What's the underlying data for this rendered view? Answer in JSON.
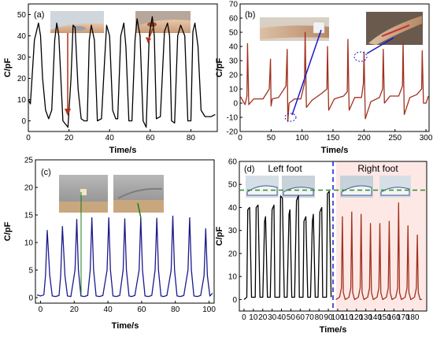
{
  "chart_data": [
    {
      "panel": "(a)",
      "type": "line",
      "xlabel": "Time/s",
      "ylabel": "C/pF",
      "xlim": [
        0,
        93
      ],
      "ylim": [
        -5,
        55
      ],
      "xticks": [
        0,
        20,
        40,
        60,
        80
      ],
      "yticks": [
        0,
        10,
        20,
        30,
        40,
        50
      ],
      "line_color": "#000000",
      "annotation_color": "#b0301a",
      "series": [
        {
          "x": [
            0,
            1,
            3,
            5,
            6,
            7,
            8.5,
            10,
            11.5,
            13,
            14,
            15,
            17,
            19.5,
            21,
            22,
            23,
            24.5,
            26,
            27.5,
            29,
            30,
            31,
            32.5,
            34,
            36,
            37.5,
            38.5,
            40,
            41.5,
            43,
            44,
            45.5,
            47,
            48,
            49.5,
            51,
            52.5,
            53.5,
            55,
            56.5,
            58,
            59.5,
            61,
            62,
            63,
            65,
            67,
            68.5,
            69.5,
            70.5,
            72,
            73.5,
            75,
            77,
            78.5,
            80,
            81,
            82,
            83.5,
            85,
            87,
            88.5,
            90,
            92
          ],
          "y": [
            10,
            8,
            38,
            46,
            40,
            20,
            5,
            1,
            5,
            38,
            46,
            40,
            0,
            -3,
            20,
            45,
            44,
            15,
            1,
            0,
            0,
            38,
            45,
            38,
            0,
            1,
            28,
            45,
            40,
            5,
            1,
            1,
            40,
            46,
            35,
            0,
            0,
            38,
            48,
            40,
            0,
            -3,
            40,
            49,
            40,
            1,
            2,
            42,
            46,
            40,
            0,
            -1,
            40,
            45,
            40,
            0,
            0,
            42,
            46,
            35,
            5,
            2,
            2,
            2,
            3
          ]
        }
      ]
    },
    {
      "panel": "(b)",
      "type": "line",
      "xlabel": "Time/s",
      "ylabel": "C/pF",
      "xlim": [
        0,
        305
      ],
      "ylim": [
        -20,
        70
      ],
      "xticks": [
        0,
        50,
        100,
        150,
        200,
        250,
        300
      ],
      "yticks": [
        -20,
        -10,
        0,
        10,
        20,
        30,
        40,
        50,
        60,
        70
      ],
      "line_color": "#a0301e",
      "annotation_color": "#1a1acc",
      "series": [
        {
          "x": [
            0,
            8,
            11,
            12,
            14,
            22,
            37,
            47,
            49,
            50,
            52,
            62,
            74,
            76,
            77,
            79,
            88,
            98,
            104,
            105,
            107,
            116,
            132,
            140,
            141,
            143,
            152,
            167,
            173,
            174,
            176,
            185,
            196,
            199,
            200,
            202,
            211,
            225,
            230,
            231,
            233,
            242,
            256,
            262,
            263,
            265,
            274,
            285,
            293,
            294,
            296,
            300,
            304
          ],
          "y": [
            5,
            -1,
            5,
            42,
            -1,
            3,
            3,
            10,
            31,
            -2,
            3,
            4,
            12,
            38,
            -13,
            0,
            3,
            3,
            14,
            50,
            -3,
            2,
            7,
            10,
            40,
            -5,
            3,
            5,
            8,
            45,
            -5,
            4,
            4,
            14,
            36,
            -11,
            1,
            4,
            10,
            38,
            0,
            5,
            5,
            12,
            43,
            -8,
            4,
            6,
            10,
            37,
            0,
            0,
            5
          ]
        }
      ]
    },
    {
      "panel": "(c)",
      "type": "line",
      "xlabel": "Time/s",
      "ylabel": "C/pF",
      "xlim": [
        -3,
        103
      ],
      "ylim": [
        -1,
        25
      ],
      "xticks": [
        0,
        20,
        40,
        60,
        80,
        100
      ],
      "yticks": [
        0,
        5,
        10,
        15,
        20,
        25
      ],
      "line_color": "#1a1a8c",
      "annotation_color": "#1a7a1a",
      "series": [
        {
          "x": [
            -2,
            0,
            2,
            3,
            4,
            5.5,
            7,
            9,
            11,
            12,
            13,
            14.5,
            16,
            18,
            20.5,
            21.5,
            22.5,
            24,
            26,
            28,
            29.5,
            30.5,
            31.5,
            33,
            35,
            37,
            39.5,
            40.5,
            41.5,
            43,
            45,
            47,
            49,
            50,
            51,
            52.5,
            54,
            56,
            58.5,
            59.5,
            60.5,
            62,
            64,
            66,
            68,
            69,
            70,
            71.5,
            73,
            75,
            77.5,
            78.5,
            79.5,
            81,
            83,
            85,
            87.5,
            88.5,
            89.5,
            91,
            93,
            95,
            97,
            98,
            99,
            100.5,
            102
          ],
          "y": [
            0.5,
            0.3,
            0.5,
            4,
            12.2,
            4,
            0.3,
            0.2,
            0.4,
            4,
            12.9,
            4,
            0.3,
            0.2,
            5,
            14.2,
            5,
            0.3,
            0.2,
            0.4,
            5,
            14.5,
            5,
            0.3,
            0.2,
            0.4,
            5,
            14.5,
            5,
            0.3,
            0.2,
            0.4,
            5,
            14.3,
            5,
            0.3,
            0.2,
            0.4,
            5,
            14.5,
            5,
            0.3,
            0.2,
            0.4,
            5,
            14.4,
            5,
            0.3,
            0.2,
            0.4,
            5,
            14.8,
            5,
            0.3,
            0.2,
            0.4,
            5,
            14.5,
            5,
            0.3,
            0.2,
            0.4,
            4,
            12.5,
            4,
            0.3,
            0.8
          ]
        }
      ]
    },
    {
      "panel": "(d)",
      "type": "line",
      "xlabel": "Time/s",
      "ylabel": "C/pF",
      "xlim": [
        -5,
        195
      ],
      "ylim": [
        -5,
        60
      ],
      "xticks": [
        0,
        10,
        20,
        30,
        40,
        50,
        60,
        70,
        80,
        90,
        100,
        110,
        120,
        130,
        140,
        150,
        160,
        170,
        180
      ],
      "ytick_labels": [
        0,
        10,
        20,
        30,
        40,
        50,
        60
      ],
      "threshold_line": 47.5,
      "divider_x": 95,
      "region_labels": [
        "Left foot",
        "Right foot"
      ],
      "series": [
        {
          "name": "Left foot",
          "color": "#000000",
          "x": [
            0,
            3,
            4,
            6,
            8,
            9,
            12,
            13,
            15,
            17,
            18,
            20,
            22,
            23,
            25,
            27,
            28,
            30,
            32,
            33,
            35,
            38,
            39,
            41,
            43,
            44,
            46,
            48,
            49,
            51,
            53,
            54,
            56,
            58,
            59,
            61,
            63,
            64,
            66,
            68,
            69,
            71,
            73,
            74,
            76,
            78,
            79,
            81,
            83,
            84,
            86,
            88,
            89,
            91,
            93
          ],
          "y": [
            0,
            1,
            39,
            40,
            1,
            1,
            1,
            40,
            41,
            1,
            1,
            1,
            34,
            36,
            1,
            1,
            1,
            39,
            41,
            1,
            1,
            1,
            45,
            44,
            1,
            1,
            1,
            37,
            39,
            1,
            1,
            1,
            43,
            45,
            1,
            1,
            1,
            34,
            36,
            1,
            1,
            1,
            34,
            37,
            1,
            1,
            1,
            38,
            40,
            1,
            1,
            1,
            46,
            47,
            1
          ]
        },
        {
          "name": "Right foot",
          "color": "#a0301e",
          "x": [
            98,
            102,
            104,
            105,
            106,
            108,
            112,
            114,
            115,
            116,
            118,
            122,
            124,
            125,
            126,
            128,
            132,
            134,
            135,
            136,
            138,
            142,
            144,
            145,
            146,
            148,
            152,
            154,
            155,
            156,
            158,
            162,
            164,
            165,
            166,
            168,
            172,
            174,
            175,
            176,
            178,
            182,
            184,
            185,
            186,
            188,
            190
          ],
          "y": [
            0,
            1,
            5,
            36,
            3,
            0,
            1,
            5,
            38,
            3,
            0,
            1,
            5,
            37,
            3,
            0,
            1,
            5,
            33,
            3,
            0,
            1,
            5,
            33,
            3,
            0,
            1,
            5,
            34,
            3,
            0,
            1,
            5,
            42,
            3,
            0,
            1,
            5,
            32,
            3,
            0,
            1,
            5,
            28,
            3,
            0,
            0
          ]
        }
      ]
    }
  ]
}
